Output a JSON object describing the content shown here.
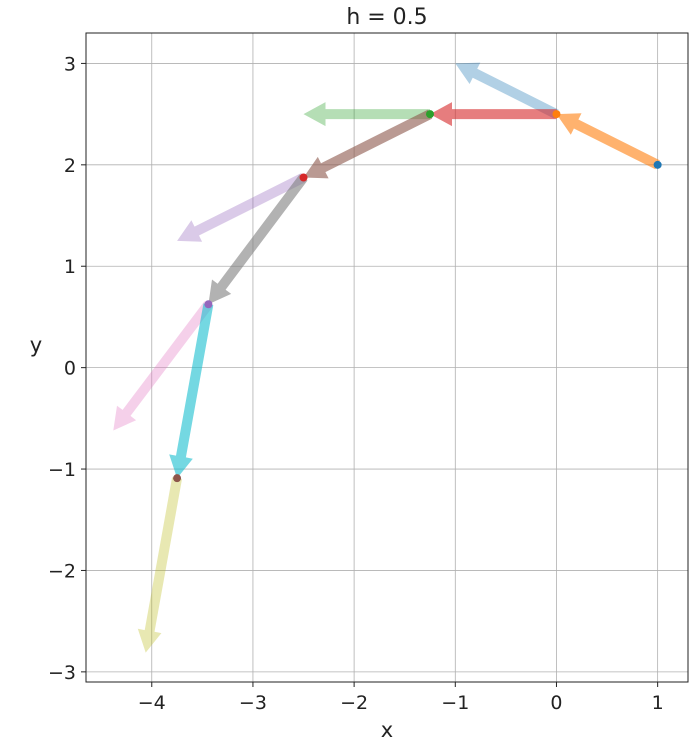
{
  "chart_data": {
    "type": "scatter",
    "title": "h = 0.5",
    "xlabel": "x",
    "ylabel": "y",
    "xlim": [
      -4.65,
      1.3
    ],
    "ylim": [
      -3.1,
      3.3
    ],
    "xticks": [
      -4,
      -3,
      -2,
      -1,
      0,
      1
    ],
    "yticks": [
      -3,
      -2,
      -1,
      0,
      1,
      2,
      3
    ],
    "xtick_labels": [
      "−4",
      "−3",
      "−2",
      "−1",
      "0",
      "1"
    ],
    "ytick_labels": [
      "−3",
      "−2",
      "−1",
      "0",
      "1",
      "2",
      "3"
    ],
    "grid": true,
    "points": [
      {
        "x": 1.0,
        "y": 2.0,
        "color": "#1f77b4"
      },
      {
        "x": 0.0,
        "y": 2.5,
        "color": "#ff7f0e"
      },
      {
        "x": -1.25,
        "y": 2.5,
        "color": "#2ca02c"
      },
      {
        "x": -2.5,
        "y": 1.875,
        "color": "#d62728"
      },
      {
        "x": -3.44,
        "y": 0.625,
        "color": "#9467bd"
      },
      {
        "x": -3.75,
        "y": -1.09,
        "color": "#8c564b"
      }
    ],
    "arrows": [
      {
        "x0": 0.0,
        "y0": 2.5,
        "x1": -1.0,
        "y1": 3.0,
        "color": "#1f77b4",
        "alpha": 0.35
      },
      {
        "x0": 1.0,
        "y0": 2.0,
        "x1": 0.0,
        "y1": 2.5,
        "color": "#ff7f0e",
        "alpha": 0.6
      },
      {
        "x0": -1.25,
        "y0": 2.5,
        "x1": -2.5,
        "y1": 2.5,
        "color": "#2ca02c",
        "alpha": 0.35
      },
      {
        "x0": 0.0,
        "y0": 2.5,
        "x1": -1.25,
        "y1": 2.5,
        "color": "#d62728",
        "alpha": 0.6
      },
      {
        "x0": -2.5,
        "y0": 1.875,
        "x1": -3.75,
        "y1": 1.25,
        "color": "#9467bd",
        "alpha": 0.35
      },
      {
        "x0": -1.25,
        "y0": 2.5,
        "x1": -2.5,
        "y1": 1.875,
        "color": "#8c564b",
        "alpha": 0.6
      },
      {
        "x0": -3.44,
        "y0": 0.625,
        "x1": -4.38,
        "y1": -0.62,
        "color": "#e377c2",
        "alpha": 0.35
      },
      {
        "x0": -2.5,
        "y0": 1.875,
        "x1": -3.44,
        "y1": 0.625,
        "color": "#7f7f7f",
        "alpha": 0.6
      },
      {
        "x0": -3.75,
        "y0": -1.09,
        "x1": -4.06,
        "y1": -2.81,
        "color": "#bcbd22",
        "alpha": 0.35
      },
      {
        "x0": -3.44,
        "y0": 0.625,
        "x1": -3.75,
        "y1": -1.09,
        "color": "#17becf",
        "alpha": 0.6
      }
    ]
  }
}
